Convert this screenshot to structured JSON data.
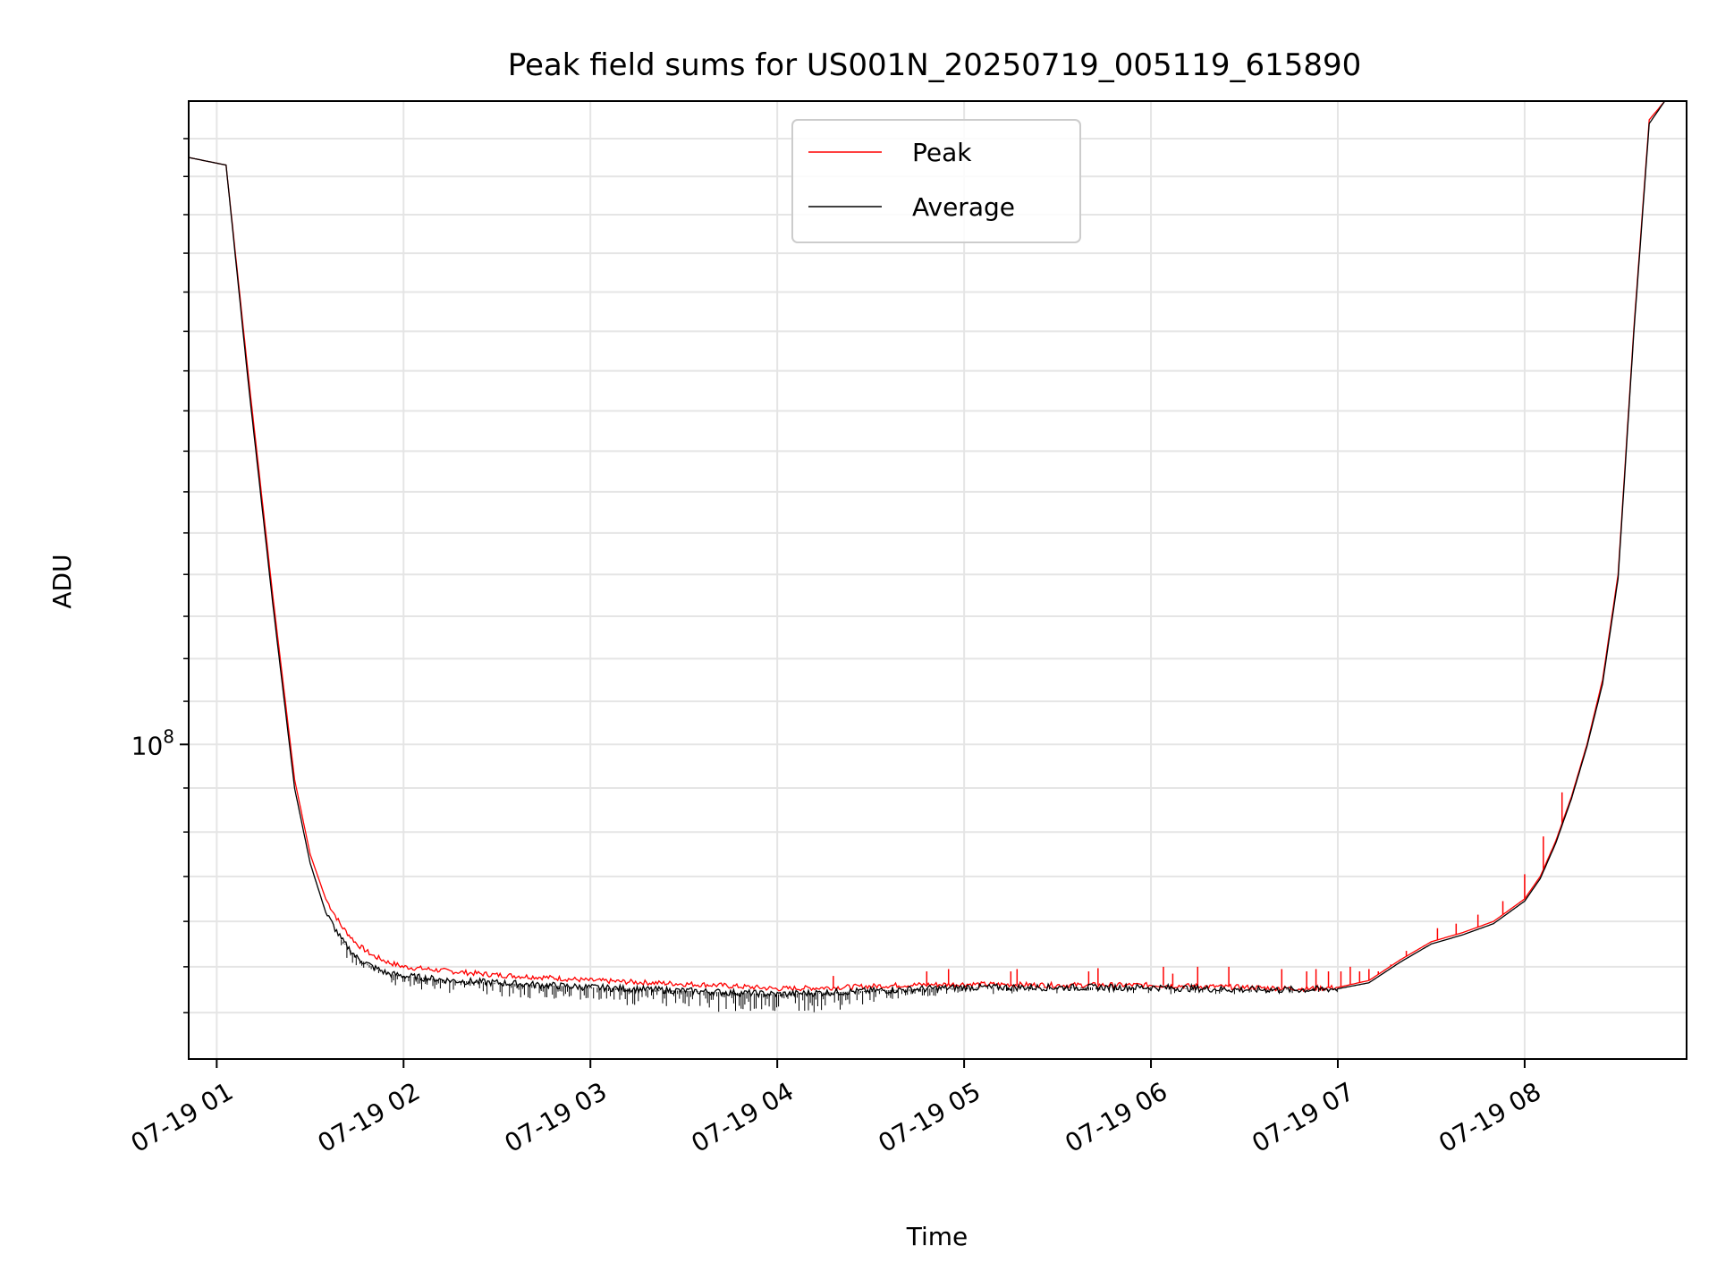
{
  "chart_data": {
    "type": "line",
    "title": "Peak field sums for US001N_20250719_005119_615890",
    "xlabel": "Time",
    "ylabel": "ADU",
    "y_scale": "log",
    "grid": true,
    "legend_placement": "upper-center",
    "xlim": [
      "2025-07-19 00:51",
      "2025-07-19 08:52"
    ],
    "ylim": [
      93000000.0,
      116000000.0
    ],
    "x_ticks": [
      {
        "value": "2025-07-19 01:00",
        "label": "07-19 01"
      },
      {
        "value": "2025-07-19 02:00",
        "label": "07-19 02"
      },
      {
        "value": "2025-07-19 03:00",
        "label": "07-19 03"
      },
      {
        "value": "2025-07-19 04:00",
        "label": "07-19 04"
      },
      {
        "value": "2025-07-19 05:00",
        "label": "07-19 05"
      },
      {
        "value": "2025-07-19 06:00",
        "label": "07-19 06"
      },
      {
        "value": "2025-07-19 07:00",
        "label": "07-19 07"
      },
      {
        "value": "2025-07-19 08:00",
        "label": "07-19 08"
      }
    ],
    "y_major_ticks": [
      {
        "value": 100000000.0,
        "label_base": "10",
        "label_exp": "8"
      }
    ],
    "y_minor_ticks": [
      94000000.0,
      95000000.0,
      96000000.0,
      97000000.0,
      98000000.0,
      99000000.0,
      101000000.0,
      102000000.0,
      103000000.0,
      104000000.0,
      105000000.0,
      106000000.0,
      107000000.0,
      108000000.0,
      109000000.0,
      110000000.0,
      111000000.0,
      112000000.0,
      113000000.0,
      114000000.0,
      115000000.0
    ],
    "x_tick_rotation_deg": 30,
    "series": [
      {
        "name": "Peak",
        "color": "#ff0000",
        "x": [
          "2025-07-19 00:51",
          "2025-07-19 00:57",
          "2025-07-19 01:03",
          "2025-07-19 01:10",
          "2025-07-19 01:18",
          "2025-07-19 01:25",
          "2025-07-19 01:30",
          "2025-07-19 01:35",
          "2025-07-19 01:40",
          "2025-07-19 01:45",
          "2025-07-19 01:50",
          "2025-07-19 01:55",
          "2025-07-19 02:00",
          "2025-07-19 02:15",
          "2025-07-19 02:30",
          "2025-07-19 02:45",
          "2025-07-19 03:00",
          "2025-07-19 03:20",
          "2025-07-19 03:40",
          "2025-07-19 04:00",
          "2025-07-19 04:20",
          "2025-07-19 04:40",
          "2025-07-19 05:00",
          "2025-07-19 05:30",
          "2025-07-19 06:00",
          "2025-07-19 06:30",
          "2025-07-19 06:50",
          "2025-07-19 07:00",
          "2025-07-19 07:10",
          "2025-07-19 07:20",
          "2025-07-19 07:30",
          "2025-07-19 07:40",
          "2025-07-19 07:50",
          "2025-07-19 08:00",
          "2025-07-19 08:05",
          "2025-07-19 08:10",
          "2025-07-19 08:15",
          "2025-07-19 08:20",
          "2025-07-19 08:25",
          "2025-07-19 08:30",
          "2025-07-19 08:35",
          "2025-07-19 08:40",
          "2025-07-19 08:45",
          "2025-07-19 08:52"
        ],
        "y": [
          114500000.0,
          114400000.0,
          114300000.0,
          109000000.0,
          103500000.0,
          99200000.0,
          97500000.0,
          96500000.0,
          95900000.0,
          95500000.0,
          95250000.0,
          95100000.0,
          95000000.0,
          94900000.0,
          94820000.0,
          94770000.0,
          94700000.0,
          94650000.0,
          94600000.0,
          94520000.0,
          94550000.0,
          94600000.0,
          94620000.0,
          94600000.0,
          94600000.0,
          94550000.0,
          94520000.0,
          94550000.0,
          94700000.0,
          95150000.0,
          95550000.0,
          95750000.0,
          96000000.0,
          96500000.0,
          97000000.0,
          97800000.0,
          98800000.0,
          100000000.0,
          101500000.0,
          104000000.0,
          110000000.0,
          115500000.0,
          116000000.0,
          116000000.0
        ],
        "spikes": [
          {
            "x": "2025-07-19 04:18",
            "y": 94800000.0
          },
          {
            "x": "2025-07-19 04:48",
            "y": 94900000.0
          },
          {
            "x": "2025-07-19 04:55",
            "y": 94950000.0
          },
          {
            "x": "2025-07-19 05:15",
            "y": 94900000.0
          },
          {
            "x": "2025-07-19 05:17",
            "y": 94950000.0
          },
          {
            "x": "2025-07-19 05:40",
            "y": 94900000.0
          },
          {
            "x": "2025-07-19 05:43",
            "y": 94970000.0
          },
          {
            "x": "2025-07-19 06:04",
            "y": 95000000.0
          },
          {
            "x": "2025-07-19 06:07",
            "y": 94850000.0
          },
          {
            "x": "2025-07-19 06:15",
            "y": 95000000.0
          },
          {
            "x": "2025-07-19 06:25",
            "y": 95000000.0
          },
          {
            "x": "2025-07-19 06:42",
            "y": 94950000.0
          },
          {
            "x": "2025-07-19 06:50",
            "y": 94900000.0
          },
          {
            "x": "2025-07-19 06:53",
            "y": 94950000.0
          },
          {
            "x": "2025-07-19 06:57",
            "y": 94900000.0
          },
          {
            "x": "2025-07-19 07:01",
            "y": 94900000.0
          },
          {
            "x": "2025-07-19 07:04",
            "y": 95000000.0
          },
          {
            "x": "2025-07-19 07:07",
            "y": 94900000.0
          },
          {
            "x": "2025-07-19 07:10",
            "y": 94950000.0
          },
          {
            "x": "2025-07-19 07:13",
            "y": 94900000.0
          },
          {
            "x": "2025-07-19 07:17",
            "y": 95050000.0
          },
          {
            "x": "2025-07-19 07:22",
            "y": 95350000.0
          },
          {
            "x": "2025-07-19 07:32",
            "y": 95850000.0
          },
          {
            "x": "2025-07-19 07:38",
            "y": 95950000.0
          },
          {
            "x": "2025-07-19 07:45",
            "y": 96150000.0
          },
          {
            "x": "2025-07-19 07:53",
            "y": 96450000.0
          },
          {
            "x": "2025-07-19 08:00",
            "y": 97050000.0
          },
          {
            "x": "2025-07-19 08:06",
            "y": 97900000.0
          },
          {
            "x": "2025-07-19 08:12",
            "y": 98900000.0
          }
        ]
      },
      {
        "name": "Average",
        "color": "#000000",
        "x": [
          "2025-07-19 00:51",
          "2025-07-19 00:57",
          "2025-07-19 01:03",
          "2025-07-19 01:10",
          "2025-07-19 01:18",
          "2025-07-19 01:25",
          "2025-07-19 01:30",
          "2025-07-19 01:35",
          "2025-07-19 01:40",
          "2025-07-19 01:45",
          "2025-07-19 01:50",
          "2025-07-19 01:55",
          "2025-07-19 02:00",
          "2025-07-19 02:15",
          "2025-07-19 02:30",
          "2025-07-19 02:45",
          "2025-07-19 03:00",
          "2025-07-19 03:20",
          "2025-07-19 03:40",
          "2025-07-19 04:00",
          "2025-07-19 04:20",
          "2025-07-19 04:40",
          "2025-07-19 05:00",
          "2025-07-19 05:30",
          "2025-07-19 06:00",
          "2025-07-19 06:30",
          "2025-07-19 06:50",
          "2025-07-19 07:00",
          "2025-07-19 07:10",
          "2025-07-19 07:20",
          "2025-07-19 07:30",
          "2025-07-19 07:40",
          "2025-07-19 07:50",
          "2025-07-19 08:00",
          "2025-07-19 08:05",
          "2025-07-19 08:10",
          "2025-07-19 08:15",
          "2025-07-19 08:20",
          "2025-07-19 08:25",
          "2025-07-19 08:30",
          "2025-07-19 08:35",
          "2025-07-19 08:40",
          "2025-07-19 08:45",
          "2025-07-19 08:52"
        ],
        "y": [
          114500000.0,
          114400000.0,
          114300000.0,
          108800000.0,
          103300000.0,
          99000000.0,
          97300000.0,
          96200000.0,
          95600000.0,
          95200000.0,
          95000000.0,
          94850000.0,
          94800000.0,
          94700000.0,
          94650000.0,
          94600000.0,
          94550000.0,
          94500000.0,
          94450000.0,
          94400000.0,
          94450000.0,
          94500000.0,
          94550000.0,
          94550000.0,
          94550000.0,
          94500000.0,
          94500000.0,
          94520000.0,
          94650000.0,
          95100000.0,
          95500000.0,
          95700000.0,
          95950000.0,
          96450000.0,
          96950000.0,
          97750000.0,
          98750000.0,
          99950000.0,
          101400000.0,
          103900000.0,
          109900000.0,
          115400000.0,
          116000000.0,
          116000000.0
        ],
        "noise_band": [
          {
            "x": "2025-07-19 01:40",
            "low": 95200000.0
          },
          {
            "x": "2025-07-19 02:00",
            "low": 94500000.0
          },
          {
            "x": "2025-07-19 03:00",
            "low": 94200000.0
          },
          {
            "x": "2025-07-19 03:45",
            "low": 94000000.0
          },
          {
            "x": "2025-07-19 04:15",
            "low": 94000000.0
          },
          {
            "x": "2025-07-19 04:40",
            "low": 94300000.0
          },
          {
            "x": "2025-07-19 05:00",
            "low": 94400000.0
          },
          {
            "x": "2025-07-19 07:00",
            "low": 94400000.0
          }
        ]
      }
    ]
  }
}
